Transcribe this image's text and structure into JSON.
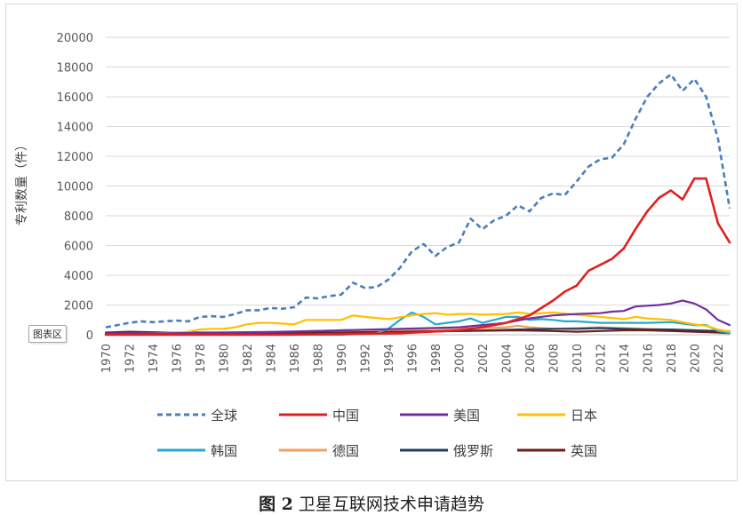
{
  "caption": {
    "fig_num": "图 2",
    "title": "卫星互联网技术申请趋势"
  },
  "chart_area_tag": "图表区",
  "chart_data": {
    "type": "line",
    "ylabel": "专利数量（件）",
    "xlabel": "",
    "ylim": [
      0,
      20000
    ],
    "y_ticks": [
      0,
      2000,
      4000,
      6000,
      8000,
      10000,
      12000,
      14000,
      16000,
      18000,
      20000
    ],
    "x_range": [
      1970,
      2023
    ],
    "x_ticks": [
      1970,
      1972,
      1974,
      1976,
      1978,
      1980,
      1982,
      1984,
      1986,
      1988,
      1990,
      1992,
      1994,
      1996,
      1998,
      2000,
      2002,
      2004,
      2006,
      2008,
      2010,
      2012,
      2014,
      2016,
      2018,
      2020,
      2022
    ],
    "grid": "horizontal",
    "legend_position": "bottom",
    "series": [
      {
        "name": "全球",
        "color": "#4a7ebb",
        "dash": true,
        "width": 2.6,
        "x": [
          1970,
          1971,
          1972,
          1973,
          1974,
          1975,
          1976,
          1977,
          1978,
          1979,
          1980,
          1981,
          1982,
          1983,
          1984,
          1985,
          1986,
          1987,
          1988,
          1989,
          1990,
          1991,
          1992,
          1993,
          1994,
          1995,
          1996,
          1997,
          1998,
          1999,
          2000,
          2001,
          2002,
          2003,
          2004,
          2005,
          2006,
          2007,
          2008,
          2009,
          2010,
          2011,
          2012,
          2013,
          2014,
          2015,
          2016,
          2017,
          2018,
          2019,
          2020,
          2021,
          2022,
          2023
        ],
        "values": [
          500,
          650,
          800,
          900,
          850,
          900,
          950,
          900,
          1200,
          1250,
          1200,
          1400,
          1650,
          1650,
          1800,
          1750,
          1850,
          2500,
          2450,
          2600,
          2700,
          3500,
          3150,
          3200,
          3700,
          4500,
          5600,
          6100,
          5300,
          5900,
          6200,
          7800,
          7100,
          7700,
          8000,
          8700,
          8300,
          9200,
          9500,
          9400,
          10300,
          11300,
          11800,
          11900,
          12800,
          14500,
          16000,
          16900,
          17500,
          16400,
          17200,
          16000,
          13200,
          8500
        ]
      },
      {
        "name": "中国",
        "color": "#e02020",
        "dash": false,
        "width": 2.6,
        "x": [
          1970,
          1975,
          1980,
          1985,
          1990,
          1995,
          2000,
          2002,
          2004,
          2006,
          2007,
          2008,
          2009,
          2010,
          2011,
          2012,
          2013,
          2014,
          2015,
          2016,
          2017,
          2018,
          2019,
          2020,
          2021,
          2022,
          2023
        ],
        "values": [
          0,
          0,
          0,
          0,
          50,
          100,
          300,
          500,
          800,
          1300,
          1800,
          2300,
          2900,
          3300,
          4300,
          4700,
          5100,
          5800,
          7100,
          8300,
          9200,
          9700,
          9100,
          10500,
          10500,
          7500,
          6200
        ]
      },
      {
        "name": "美国",
        "color": "#7030a0",
        "dash": false,
        "width": 2.2,
        "x": [
          1970,
          1975,
          1980,
          1985,
          1990,
          1995,
          2000,
          2004,
          2006,
          2008,
          2010,
          2012,
          2013,
          2014,
          2015,
          2016,
          2017,
          2018,
          2019,
          2020,
          2021,
          2022,
          2023
        ],
        "values": [
          100,
          100,
          150,
          200,
          300,
          400,
          500,
          800,
          1100,
          1300,
          1400,
          1450,
          1550,
          1600,
          1900,
          1950,
          2000,
          2100,
          2300,
          2100,
          1700,
          1000,
          650
        ]
      },
      {
        "name": "日本",
        "color": "#ffc000",
        "dash": false,
        "width": 2.2,
        "x": [
          1970,
          1972,
          1974,
          1976,
          1977,
          1978,
          1979,
          1980,
          1981,
          1982,
          1983,
          1984,
          1985,
          1986,
          1987,
          1988,
          1989,
          1990,
          1991,
          1992,
          1994,
          1996,
          1997,
          1998,
          1999,
          2000,
          2001,
          2002,
          2004,
          2005,
          2006,
          2008,
          2010,
          2012,
          2014,
          2015,
          2016,
          2018,
          2020,
          2021,
          2022,
          2023
        ],
        "values": [
          50,
          80,
          100,
          150,
          200,
          350,
          400,
          400,
          500,
          700,
          800,
          800,
          750,
          700,
          1000,
          1000,
          1000,
          1000,
          1300,
          1200,
          1050,
          1300,
          1400,
          1450,
          1350,
          1400,
          1400,
          1350,
          1400,
          1500,
          1400,
          1500,
          1350,
          1200,
          1050,
          1200,
          1100,
          1000,
          700,
          600,
          350,
          200
        ]
      },
      {
        "name": "韩国",
        "color": "#25aacc",
        "dash": false,
        "width": 2.2,
        "x": [
          1970,
          1990,
          1993,
          1994,
          1995,
          1996,
          1997,
          1998,
          1999,
          2000,
          2001,
          2002,
          2003,
          2004,
          2005,
          2006,
          2007,
          2008,
          2009,
          2010,
          2012,
          2014,
          2016,
          2018,
          2020,
          2021,
          2022,
          2023
        ],
        "values": [
          0,
          0,
          100,
          400,
          1000,
          1500,
          1200,
          700,
          800,
          900,
          1100,
          800,
          1000,
          1200,
          1200,
          1000,
          1050,
          1000,
          900,
          900,
          800,
          800,
          800,
          850,
          650,
          650,
          250,
          100
        ]
      },
      {
        "name": "德国",
        "color": "#f0a060",
        "dash": false,
        "width": 2.2,
        "x": [
          1970,
          1975,
          1980,
          1985,
          1988,
          1990,
          1995,
          2000,
          2004,
          2005,
          2006,
          2008,
          2010,
          2012,
          2014,
          2016,
          2018,
          2020,
          2022,
          2023
        ],
        "values": [
          50,
          80,
          100,
          150,
          250,
          300,
          350,
          400,
          500,
          600,
          500,
          400,
          450,
          500,
          450,
          400,
          350,
          300,
          250,
          250
        ]
      },
      {
        "name": "俄罗斯",
        "color": "#243f60",
        "dash": false,
        "width": 2.2,
        "x": [
          1970,
          1975,
          1980,
          1985,
          1990,
          1995,
          2000,
          2005,
          2008,
          2010,
          2012,
          2014,
          2016,
          2018,
          2020,
          2022,
          2023
        ],
        "values": [
          50,
          80,
          80,
          100,
          150,
          200,
          250,
          350,
          400,
          400,
          450,
          400,
          350,
          350,
          300,
          250,
          200
        ]
      },
      {
        "name": "英国",
        "color": "#6b1f1f",
        "dash": false,
        "width": 2.2,
        "x": [
          1970,
          1972,
          1975,
          1980,
          1985,
          1990,
          1995,
          2000,
          2005,
          2008,
          2010,
          2012,
          2014,
          2016,
          2018,
          2020,
          2022,
          2023
        ],
        "values": [
          150,
          200,
          150,
          150,
          150,
          150,
          200,
          250,
          300,
          250,
          200,
          250,
          300,
          300,
          250,
          200,
          150,
          100
        ]
      }
    ]
  }
}
